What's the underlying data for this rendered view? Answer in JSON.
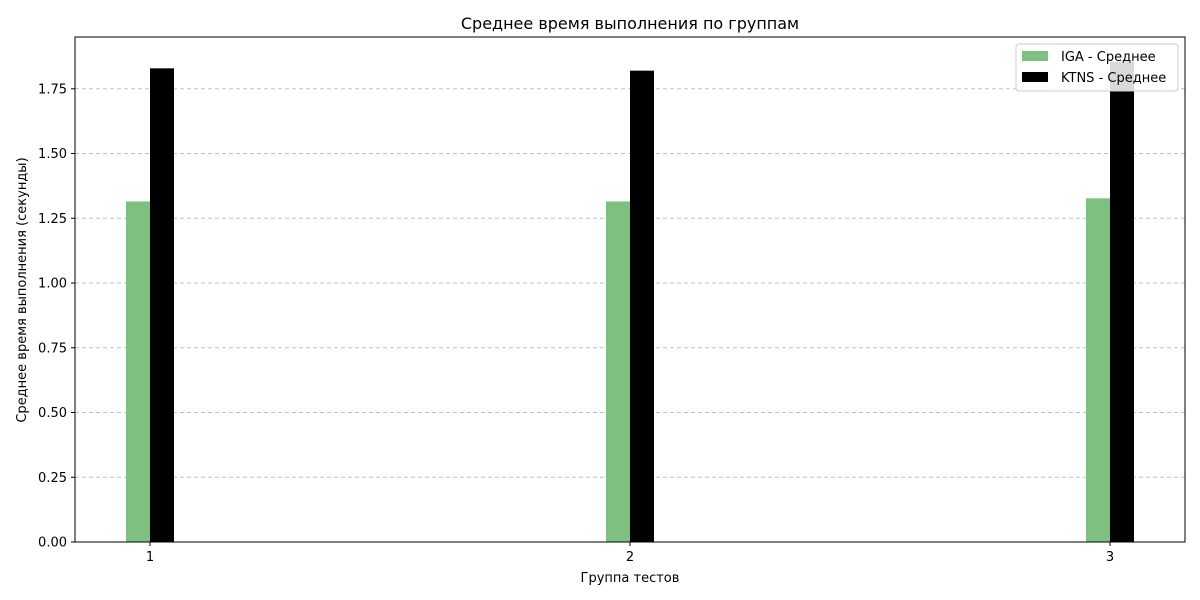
{
  "chart_data": {
    "type": "bar",
    "title": "Среднее время выполнения по группам",
    "xlabel": "Группа тестов",
    "ylabel": "Среднее время выполнения (секунды)",
    "categories": [
      "1",
      "2",
      "3"
    ],
    "ylim": [
      0,
      1.95
    ],
    "yticks": [
      "0.00",
      "0.25",
      "0.50",
      "0.75",
      "1.00",
      "1.25",
      "1.50",
      "1.75"
    ],
    "grid": true,
    "legend_position": "top-right",
    "series": [
      {
        "name": "IGA - Среднее",
        "color": "#7fbf7f",
        "values": [
          1.315,
          1.315,
          1.327
        ]
      },
      {
        "name": "KTNS - Среднее",
        "color": "#000000",
        "values": [
          1.829,
          1.82,
          1.855
        ]
      }
    ]
  }
}
